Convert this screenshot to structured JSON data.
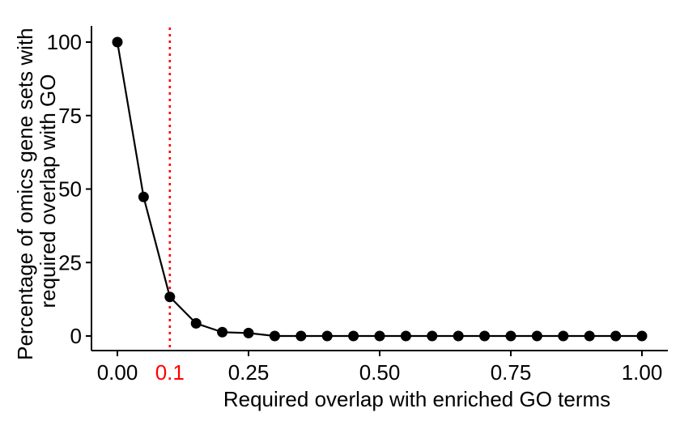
{
  "chart_data": {
    "type": "line",
    "title": "",
    "xlabel": "Required overlap with enriched GO terms",
    "ylabel": "Percentage of omics gene sets with required overlap with GO",
    "ylabel_lines": [
      "Percentage of omics gene sets with",
      "required overlap with GO"
    ],
    "xlim": [
      0,
      1
    ],
    "ylim": [
      0,
      100
    ],
    "x_ticks": [
      {
        "value": 0.0,
        "label": "0.00"
      },
      {
        "value": 0.25,
        "label": "0.25"
      },
      {
        "value": 0.5,
        "label": "0.50"
      },
      {
        "value": 0.75,
        "label": "0.75"
      },
      {
        "value": 1.0,
        "label": "1.00"
      }
    ],
    "y_ticks": [
      {
        "value": 0,
        "label": "0"
      },
      {
        "value": 25,
        "label": "25"
      },
      {
        "value": 50,
        "label": "50"
      },
      {
        "value": 75,
        "label": "75"
      },
      {
        "value": 100,
        "label": "100"
      }
    ],
    "grid": false,
    "series": [
      {
        "x": [
          0.0,
          0.05,
          0.1,
          0.15,
          0.2,
          0.25,
          0.3,
          0.35,
          0.4,
          0.45,
          0.5,
          0.55,
          0.6,
          0.65,
          0.7,
          0.75,
          0.8,
          0.85,
          0.9,
          0.95,
          1.0
        ],
        "values": [
          100,
          47.3,
          13.3,
          4.3,
          1.3,
          1.0,
          0,
          0,
          0,
          0,
          0,
          0,
          0,
          0,
          0,
          0,
          0,
          0,
          0,
          0,
          0
        ],
        "color": "#000000"
      }
    ],
    "reference_line": {
      "x": 0.1,
      "label": "0.1",
      "color": "#ff0000",
      "style": "dotted"
    }
  }
}
